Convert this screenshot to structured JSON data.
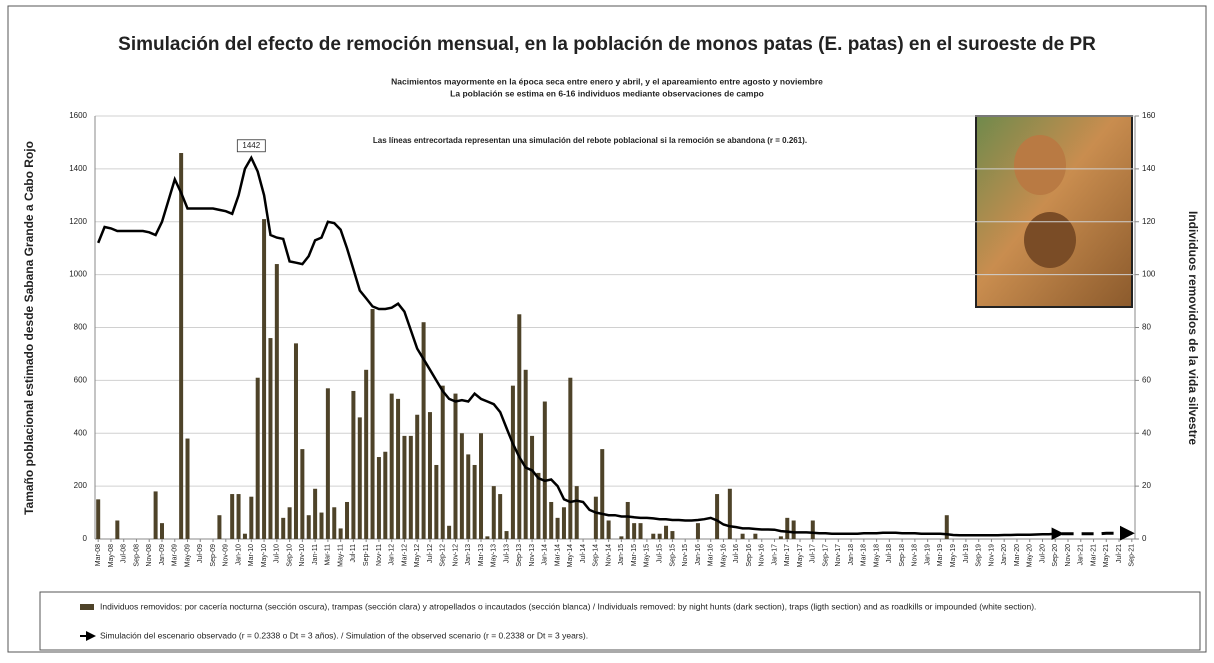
{
  "chart_data": {
    "type": "combo",
    "title": "Simulación del efecto de remoción mensual, en la población de monos patas (E. patas) en el suroeste de PR",
    "subtitle": [
      "Nacimientos mayormente  en la época seca entre enero y abril, y el apareamiento entre agosto y noviembre",
      "La población  se estima en  6-16 individuos mediante observaciones de campo"
    ],
    "annotation": "Las líneas entrecortada representan una simulación del rebote poblacional si la remoción se abandona (r = 0.261).",
    "y_label": "Tamaño poblacional  estimado desde Sabana Grande a Cabo Rojo",
    "y2_label": "Individuos removidos de la vida silvestre",
    "ylim": [
      0,
      1600
    ],
    "yticks": [
      0,
      200,
      400,
      600,
      800,
      1000,
      1200,
      1400,
      1600
    ],
    "y2lim": [
      0,
      160
    ],
    "y2ticks": [
      0,
      20,
      40,
      60,
      80,
      100,
      120,
      140,
      160
    ],
    "grid": true,
    "categories": [
      "Mar-08",
      null,
      "May-08",
      null,
      "Jul-08",
      null,
      "Sep-08",
      null,
      "Nov-08",
      null,
      "Jan-09",
      null,
      "Mar-09",
      null,
      "May-09",
      null,
      "Jul-09",
      null,
      "Sep-09",
      null,
      "Nov-09",
      null,
      "Jan-10",
      null,
      "Mar-10",
      null,
      "May-10",
      null,
      "Jul-10",
      null,
      "Sep-10",
      null,
      "Nov-10",
      null,
      "Jan-11",
      null,
      "Mar-11",
      null,
      "May-11",
      null,
      "Jul-11",
      null,
      "Sep-11",
      null,
      "Nov-11",
      null,
      "Jan-12",
      null,
      "Mar-12",
      null,
      "May-12",
      null,
      "Jul-12",
      null,
      "Sep-12",
      null,
      "Nov-12",
      null,
      "Jan-13",
      null,
      "Mar-13",
      null,
      "May-13",
      null,
      "Jul-13",
      null,
      "Sep-13",
      null,
      "Nov-13",
      null,
      "Jan-14",
      null,
      "Mar-14",
      null,
      "May-14",
      null,
      "Jul-14",
      null,
      "Sep-14",
      null,
      "Nov-14",
      null,
      "Jan-15",
      null,
      "Mar-15",
      null,
      "May-15",
      null,
      "Jul-15",
      null,
      "Sep-15",
      null,
      "Nov-15",
      null,
      "Jan-16",
      null,
      "Mar-16",
      null,
      "May-16",
      null,
      "Jul-16",
      null,
      "Sep-16",
      null,
      "Nov-16",
      null,
      "Jan-17",
      null,
      "Mar-17",
      null,
      "May-17",
      null,
      "Jul-17",
      null,
      "Sep-17",
      null,
      "Nov-17",
      null,
      "Jan-18",
      null,
      "Mar-18",
      null,
      "May-18",
      null,
      "Jul-18",
      null,
      "Sep-18",
      null,
      "Nov-18",
      null,
      "Jan-19",
      null,
      "Mar-19",
      null,
      "May-19",
      null,
      "Jul-19",
      null,
      "Sep-19",
      null,
      "Nov-19",
      null,
      "Jan-20",
      null,
      "Mar-20",
      null,
      "May-20",
      null,
      "Jul-20",
      null,
      "Sep-20",
      null,
      "Nov-20",
      null,
      "Jan-21",
      null,
      "Mar-21",
      null,
      "May-21",
      null,
      "Jul-21",
      null,
      "Sep-21"
    ],
    "series": [
      {
        "name": "Individuos removidos: por cacería nocturna (sección oscura), trampas (sección clara) y atropellados o incautados (sección blanca) / Individuals removed: by night hunts (dark section), traps (ligth section) and as roadkills or impounded (white section).",
        "type": "bar",
        "axis": "y2",
        "color": "#4e4329",
        "values": [
          15,
          0,
          0,
          7,
          0,
          0,
          0,
          0,
          0,
          18,
          6,
          0,
          0,
          146,
          38,
          0,
          0,
          0,
          0,
          9,
          0,
          17,
          17,
          2,
          16,
          61,
          121,
          76,
          104,
          8,
          12,
          74,
          34,
          9,
          19,
          10,
          57,
          12,
          4,
          14,
          56,
          46,
          64,
          87,
          31,
          33,
          55,
          53,
          39,
          39,
          47,
          82,
          48,
          28,
          58,
          5,
          55,
          40,
          32,
          28,
          40,
          1,
          20,
          17,
          3,
          58,
          85,
          64,
          39,
          25,
          52,
          14,
          8,
          12,
          61,
          20,
          0,
          0,
          16,
          34,
          7,
          0,
          1,
          14,
          6,
          6,
          0,
          2,
          2,
          5,
          3,
          0,
          0,
          0,
          6,
          0,
          0,
          17,
          0,
          19,
          0,
          2,
          0,
          2,
          0,
          0,
          0,
          1,
          8,
          7,
          0,
          0,
          7,
          0,
          0,
          0,
          0,
          0,
          0,
          0,
          0,
          0,
          0,
          0,
          0,
          0,
          0,
          0,
          0,
          0,
          0,
          0,
          0,
          9,
          0,
          0,
          0,
          0,
          0,
          0,
          0,
          0,
          0,
          0,
          0,
          0,
          0,
          0,
          0,
          0,
          0,
          0,
          0,
          0,
          0,
          0,
          0,
          0,
          0,
          0,
          0,
          0,
          0
        ]
      },
      {
        "name": "Simulación del escenario observado (r = 0.2338 o Dt = 3 años). / Simulation of the observed scenario (r = 0.2338 or Dt = 3 years).",
        "type": "line",
        "color": "#000000",
        "peak_label_index": 24,
        "values": [
          1120,
          1180,
          1175,
          1165,
          1165,
          1165,
          1165,
          1165,
          1160,
          1150,
          1200,
          1280,
          1360,
          1310,
          1250,
          1250,
          1250,
          1250,
          1250,
          1245,
          1240,
          1230,
          1300,
          1400,
          1442,
          1390,
          1300,
          1150,
          1140,
          1135,
          1050,
          1045,
          1040,
          1070,
          1130,
          1140,
          1200,
          1195,
          1170,
          1100,
          1020,
          940,
          910,
          880,
          870,
          870,
          875,
          890,
          860,
          790,
          720,
          680,
          640,
          600,
          560,
          530,
          520,
          525,
          520,
          550,
          530,
          520,
          510,
          480,
          420,
          360,
          310,
          270,
          260,
          230,
          220,
          225,
          200,
          150,
          140,
          145,
          140,
          110,
          100,
          95,
          90,
          90,
          85,
          85,
          82,
          80,
          80,
          78,
          75,
          75,
          72,
          72,
          70,
          70,
          72,
          75,
          80,
          70,
          55,
          48,
          45,
          40,
          40,
          38,
          36,
          36,
          35,
          30,
          28,
          25,
          25,
          25,
          24,
          22,
          22,
          20,
          20,
          20,
          20,
          20,
          22,
          22,
          22,
          24,
          24,
          24,
          22,
          22,
          22,
          20,
          20,
          20,
          20,
          18,
          15,
          14,
          14,
          14,
          14,
          14,
          14,
          14,
          15,
          15,
          16,
          16,
          16,
          17,
          18,
          18,
          20,
          20,
          null,
          null,
          null,
          null,
          null,
          null,
          null,
          null,
          null,
          null,
          null
        ]
      },
      {
        "type": "line",
        "color": "#000000",
        "dashed": true,
        "values": [
          null,
          null,
          null,
          null,
          null,
          null,
          null,
          null,
          null,
          null,
          null,
          null,
          null,
          null,
          null,
          null,
          null,
          null,
          null,
          null,
          null,
          null,
          null,
          null,
          null,
          null,
          null,
          null,
          null,
          null,
          null,
          null,
          null,
          null,
          null,
          null,
          null,
          null,
          null,
          null,
          null,
          null,
          null,
          null,
          null,
          null,
          null,
          null,
          null,
          null,
          null,
          null,
          null,
          null,
          null,
          null,
          null,
          null,
          null,
          null,
          null,
          null,
          null,
          null,
          null,
          null,
          null,
          null,
          null,
          null,
          null,
          null,
          null,
          null,
          null,
          null,
          null,
          null,
          null,
          null,
          null,
          null,
          null,
          null,
          null,
          null,
          null,
          null,
          null,
          null,
          null,
          null,
          null,
          null,
          null,
          null,
          null,
          null,
          null,
          null,
          null,
          null,
          null,
          null,
          null,
          null,
          null,
          null,
          null,
          null,
          null,
          null,
          null,
          null,
          null,
          null,
          null,
          null,
          null,
          null,
          null,
          null,
          null,
          null,
          null,
          null,
          null,
          null,
          null,
          null,
          null,
          null,
          null,
          null,
          null,
          null,
          null,
          null,
          null,
          null,
          null,
          null,
          null,
          null,
          null,
          null,
          null,
          null,
          null,
          null,
          null,
          20,
          20,
          20,
          20,
          20,
          20,
          20,
          22,
          22,
          22,
          22,
          22
        ]
      }
    ]
  }
}
